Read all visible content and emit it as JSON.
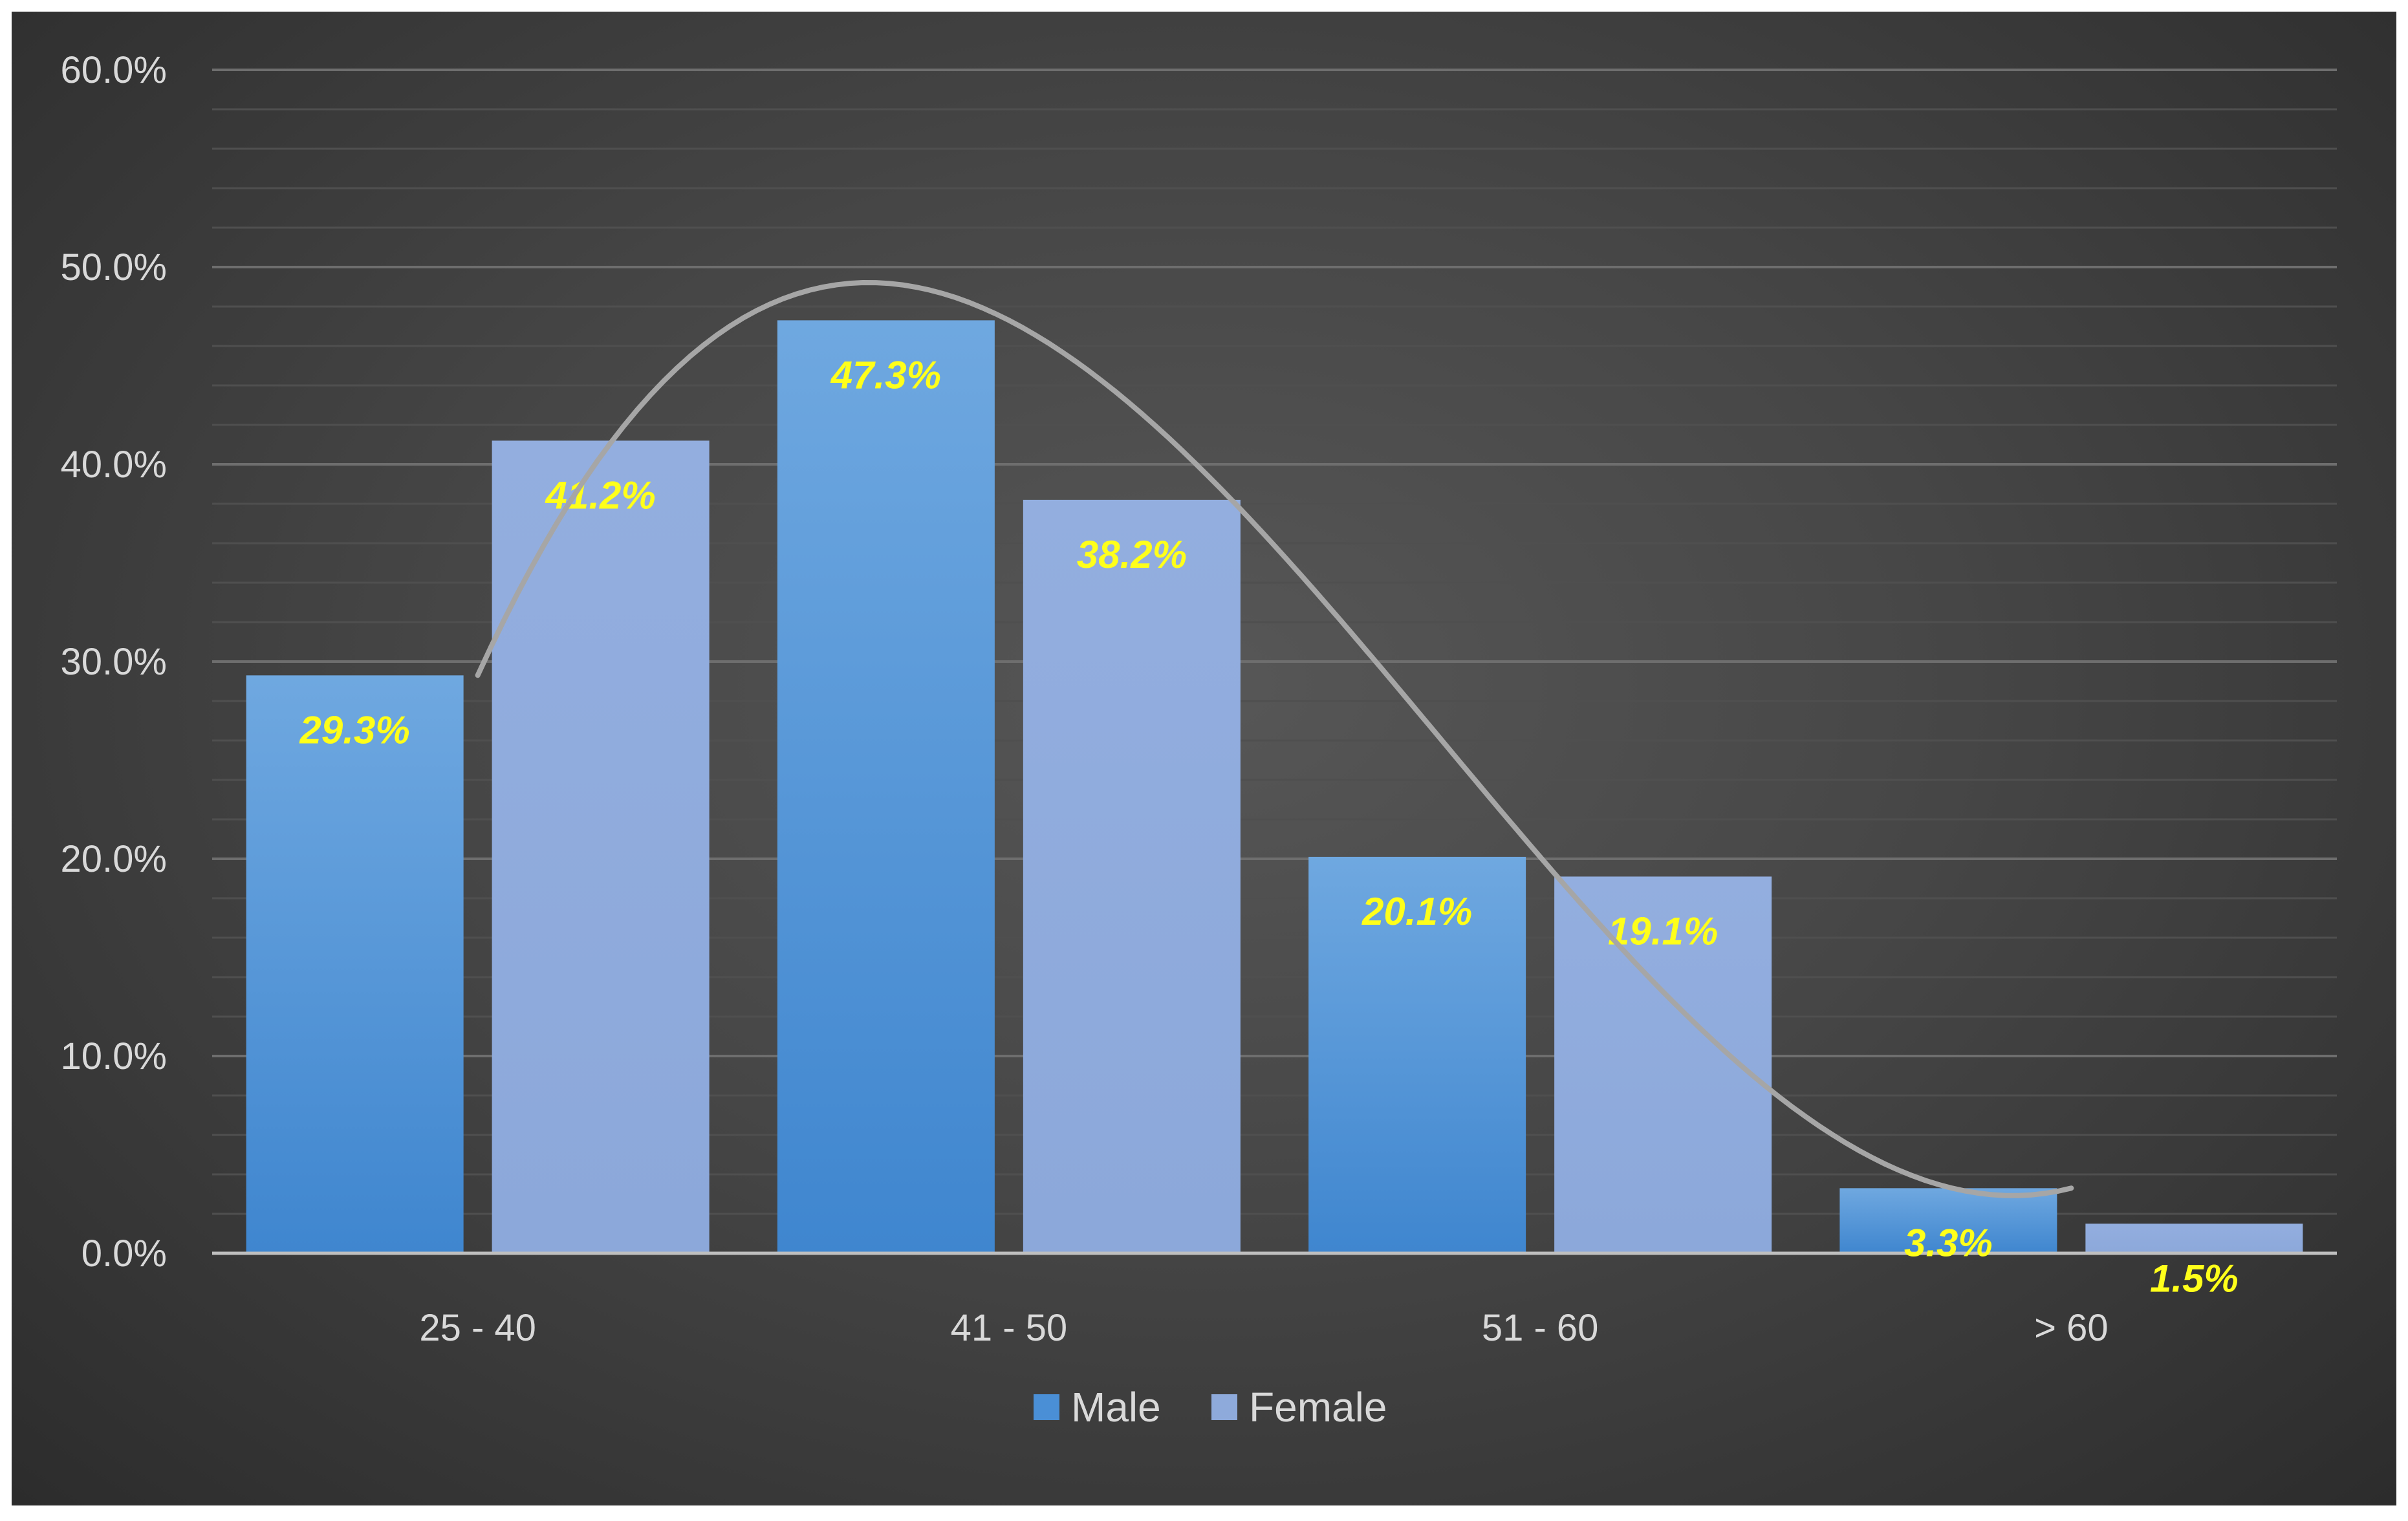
{
  "chart_data": {
    "type": "bar",
    "categories": [
      "25 - 40",
      "41 - 50",
      "51 - 60",
      "> 60"
    ],
    "series": [
      {
        "name": "Male",
        "values": [
          29.3,
          47.3,
          20.1,
          3.3
        ],
        "labels": [
          "29.3%",
          "47.3%",
          "20.1%",
          "3.3%"
        ],
        "color": "#4a8fd6"
      },
      {
        "name": "Female",
        "values": [
          41.2,
          38.2,
          19.1,
          1.5
        ],
        "labels": [
          "41.2%",
          "38.2%",
          "19.1%",
          "1.5%"
        ],
        "color": "#8eaadb"
      }
    ],
    "y_ticks": [
      "0.0%",
      "10.0%",
      "20.0%",
      "30.0%",
      "40.0%",
      "50.0%",
      "60.0%"
    ],
    "ylim": [
      0,
      60
    ],
    "grid": true,
    "legend": "bottom",
    "trendline": {
      "type": "polynomial",
      "series": "Male",
      "color": "#a6a6a6"
    },
    "title": "",
    "xlabel": "",
    "ylabel": ""
  }
}
